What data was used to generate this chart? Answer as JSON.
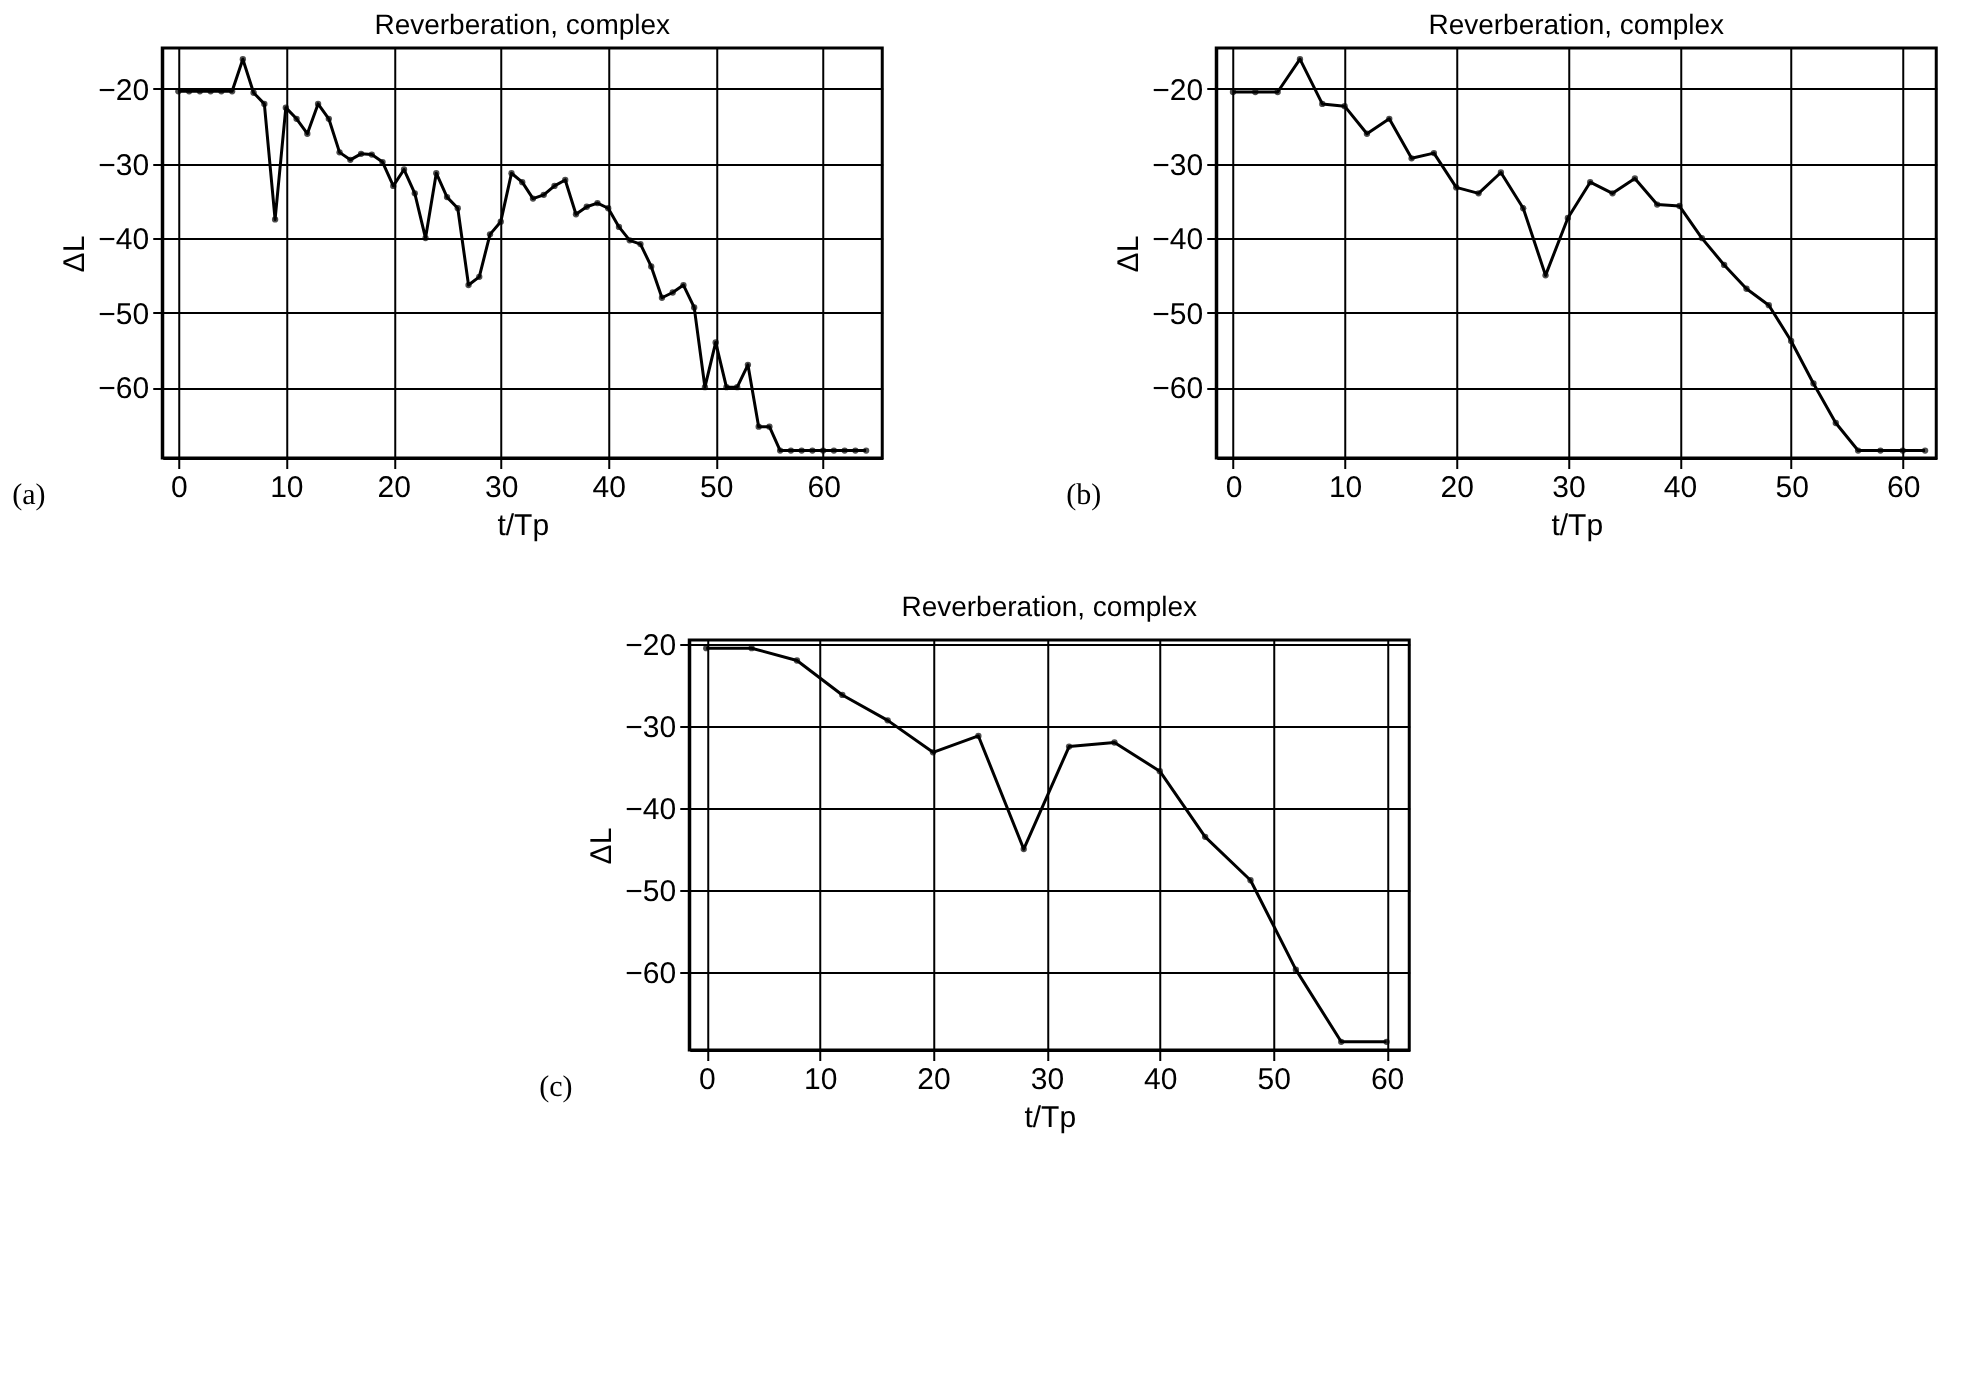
{
  "chart_data": [
    {
      "type": "line",
      "title": "Reverberation, complex",
      "xlabel": "t/Tp",
      "ylabel": "ΔL",
      "annotations": [
        "(a)"
      ],
      "x": [
        0,
        1,
        2,
        3,
        4,
        5,
        6,
        7,
        8,
        9,
        10,
        11,
        12,
        13,
        14,
        15,
        16,
        17,
        18,
        19,
        20,
        21,
        22,
        23,
        24,
        25,
        26,
        27,
        28,
        29,
        30,
        31,
        32,
        33,
        34,
        35,
        36,
        37,
        38,
        39,
        40,
        41,
        42,
        43,
        44,
        45,
        46,
        47,
        48,
        49,
        50,
        51,
        52,
        53,
        54,
        55,
        56,
        57,
        58,
        59,
        60,
        61,
        62,
        63,
        64
      ],
      "series": [
        {
          "color": "#000000",
          "values": [
            -20.3,
            -20.3,
            -20.3,
            -20.3,
            -20.3,
            -20.3,
            -16,
            -20.5,
            -22,
            -37.5,
            -22.5,
            -24,
            -26,
            -22,
            -24,
            -28.5,
            -29.5,
            -28.7,
            -28.8,
            -29.8,
            -33,
            -30.8,
            -34,
            -40,
            -31.3,
            -34.5,
            -36,
            -46.3,
            -45.2,
            -39.5,
            -37.8,
            -31.3,
            -32.5,
            -34.7,
            -34.2,
            -33,
            -32.2,
            -36.8,
            -35.8,
            -35.3,
            -36,
            -38.5,
            -40.3,
            -40.8,
            -43.8,
            -48,
            -47.3,
            -46.3,
            -49.3,
            -60,
            -54,
            -60,
            -60,
            -57,
            -65.3,
            -65.3,
            -68.5,
            -68.5,
            -68.5,
            -68.5,
            -68.5,
            -68.5,
            -68.5,
            -68.5,
            -68.5
          ]
        }
      ],
      "xlim": [
        -1.5,
        65.5
      ],
      "ylim": [
        -69.5,
        -14.5
      ],
      "xticks": [
        0,
        10,
        20,
        30,
        40,
        50,
        60
      ],
      "yticks": [
        -60,
        -50,
        -40,
        -30,
        -20
      ],
      "grid": true,
      "marker": "circle",
      "line_style": "solid",
      "legend": false
    },
    {
      "type": "line",
      "title": "Reverberation, complex",
      "xlabel": "t/Tp",
      "ylabel": "ΔL",
      "annotations": [
        "(b)"
      ],
      "x": [
        0,
        2,
        4,
        6,
        8,
        10,
        12,
        14,
        16,
        18,
        20,
        22,
        24,
        26,
        28,
        30,
        32,
        34,
        36,
        38,
        40,
        42,
        44,
        46,
        48,
        50,
        52,
        54,
        56,
        58,
        60,
        62
      ],
      "series": [
        {
          "color": "#000000",
          "values": [
            -20.4,
            -20.4,
            -20.4,
            -16,
            -22,
            -22.3,
            -26,
            -24,
            -29.3,
            -28.6,
            -33.2,
            -34,
            -31.2,
            -36,
            -45,
            -37.3,
            -32.5,
            -34,
            -32,
            -35.5,
            -35.7,
            -40,
            -43.6,
            -46.8,
            -49,
            -53.8,
            -59.5,
            -64.8,
            -68.5,
            -68.5,
            -68.5,
            -68.5
          ]
        }
      ],
      "xlim": [
        -1.5,
        63
      ],
      "ylim": [
        -69.5,
        -14.5
      ],
      "xticks": [
        0,
        10,
        20,
        30,
        40,
        50,
        60
      ],
      "yticks": [
        -60,
        -50,
        -40,
        -30,
        -20
      ],
      "grid": true,
      "marker": "circle",
      "line_style": "solid",
      "legend": false
    },
    {
      "type": "line",
      "title": "Reverberation, complex",
      "xlabel": "t/Tp",
      "ylabel": "ΔL",
      "annotations": [
        "(c)"
      ],
      "x": [
        0,
        4,
        8,
        12,
        16,
        20,
        24,
        28,
        32,
        36,
        40,
        44,
        48,
        52,
        56,
        60
      ],
      "series": [
        {
          "color": "#000000",
          "values": [
            -20.5,
            -20.5,
            -22,
            -26.2,
            -29.3,
            -33.2,
            -31.2,
            -45,
            -32.5,
            -32,
            -35.5,
            -43.5,
            -48.8,
            -59.7,
            -68.5,
            -68.5
          ]
        }
      ],
      "xlim": [
        -1.5,
        62
      ],
      "ylim": [
        -69.5,
        -19.5
      ],
      "xticks": [
        0,
        10,
        20,
        30,
        40,
        50,
        60
      ],
      "yticks": [
        -60,
        -50,
        -40,
        -30,
        -20
      ],
      "grid": true,
      "marker": "circle",
      "line_style": "solid",
      "legend": false
    }
  ]
}
